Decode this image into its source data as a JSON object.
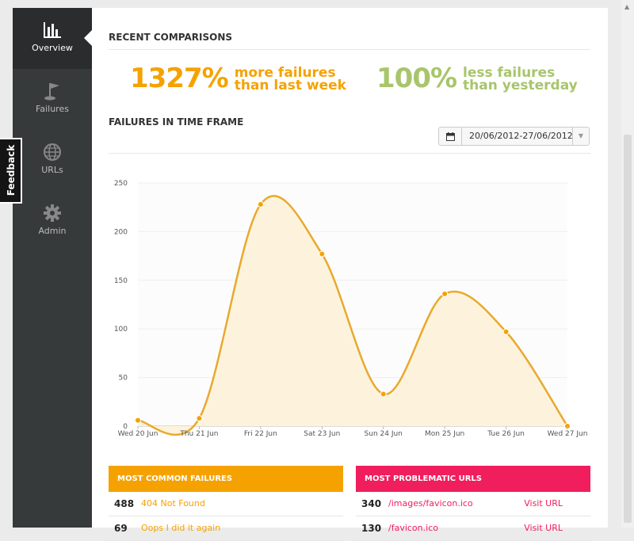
{
  "sidebar": {
    "items": [
      {
        "label": "Overview",
        "icon": "bar-chart-icon",
        "active": true
      },
      {
        "label": "Failures",
        "icon": "flag-icon"
      },
      {
        "label": "URLs",
        "icon": "globe-icon"
      },
      {
        "label": "Admin",
        "icon": "gear-icon"
      }
    ]
  },
  "feedback": {
    "label": "Feedback"
  },
  "recent": {
    "title": "RECENT COMPARISONS",
    "week": {
      "value": "1327%",
      "line1": "more failures",
      "line2": "than last week",
      "color": "#f5a200"
    },
    "day": {
      "value": "100%",
      "line1": "less failures",
      "line2": "than yesterday",
      "color": "#a8c56b"
    }
  },
  "timeframe": {
    "title": "FAILURES IN TIME FRAME",
    "date_range": "20/06/2012-27/06/2012"
  },
  "chart_data": {
    "type": "area",
    "x": [
      "Wed 20 Jun",
      "Thu 21 Jun",
      "Fri 22 Jun",
      "Sat 23 Jun",
      "Sun 24 Jun",
      "Mon 25 Jun",
      "Tue 26 Jun",
      "Wed 27 Jun"
    ],
    "values": [
      6,
      8,
      228,
      177,
      33,
      136,
      97,
      0
    ],
    "ylim": [
      0,
      250
    ],
    "yticks": [
      "0",
      "50",
      "100",
      "150",
      "200",
      "250"
    ],
    "line_color": "#e9a92e",
    "fill_color": "#fdf3dd",
    "grid": true
  },
  "common_failures": {
    "title": "MOST COMMON FAILURES",
    "color": "#f5a200",
    "rows": [
      {
        "count": "488",
        "label": "404 Not Found"
      },
      {
        "count": "69",
        "label": "Oops I did it again"
      }
    ]
  },
  "problematic_urls": {
    "title": "MOST PROBLEMATIC URLS",
    "color": "#f01e5d",
    "rows": [
      {
        "count": "340",
        "label": "/images/favicon.ico",
        "link": "Visit URL"
      },
      {
        "count": "130",
        "label": "/favicon.ico",
        "link": "Visit URL"
      }
    ]
  }
}
